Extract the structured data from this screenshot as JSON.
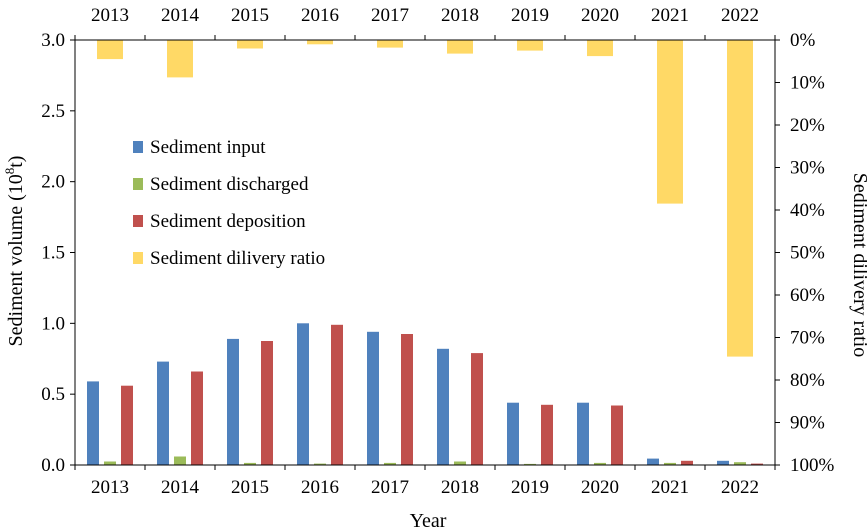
{
  "chart_data": {
    "type": "bar",
    "title": "",
    "categories": [
      "2013",
      "2014",
      "2015",
      "2016",
      "2017",
      "2018",
      "2019",
      "2020",
      "2021",
      "2022"
    ],
    "series": [
      {
        "name": "Sediment input",
        "axis": "left",
        "color": "#4F81BD",
        "values": [
          0.59,
          0.73,
          0.89,
          1.0,
          0.94,
          0.82,
          0.44,
          0.44,
          0.045,
          0.03
        ]
      },
      {
        "name": "Sediment discharged",
        "axis": "left",
        "color": "#9BBB59",
        "values": [
          0.025,
          0.06,
          0.015,
          0.01,
          0.015,
          0.025,
          0.008,
          0.015,
          0.015,
          0.02
        ]
      },
      {
        "name": "Sediment deposition",
        "axis": "left",
        "color": "#C0504D",
        "values": [
          0.56,
          0.66,
          0.875,
          0.99,
          0.925,
          0.79,
          0.425,
          0.42,
          0.03,
          0.01
        ]
      },
      {
        "name": "Sediment dilivery ratio",
        "axis": "right",
        "color": "#FFD966",
        "values": [
          0.045,
          0.088,
          0.02,
          0.01,
          0.018,
          0.032,
          0.025,
          0.038,
          0.385,
          0.745
        ]
      }
    ],
    "xlabel": "Year",
    "ylabel": "Sediment volume (10",
    "ylabel_sup": "8",
    "ylabel_unit": "t)",
    "ylabel_right": "Sediment dilivery ratio",
    "ylim": [
      0,
      3.0
    ],
    "y_ticks": [
      "0.0",
      "0.5",
      "1.0",
      "1.5",
      "2.0",
      "2.5",
      "3.0"
    ],
    "ylim_right": [
      1.0,
      0.0
    ],
    "y_ticks_right": [
      "0%",
      "10%",
      "20%",
      "30%",
      "40%",
      "50%",
      "60%",
      "70%",
      "80%",
      "90%",
      "100%"
    ],
    "right_axis_inverted": true,
    "grid": false,
    "legend_position": "left-center"
  }
}
